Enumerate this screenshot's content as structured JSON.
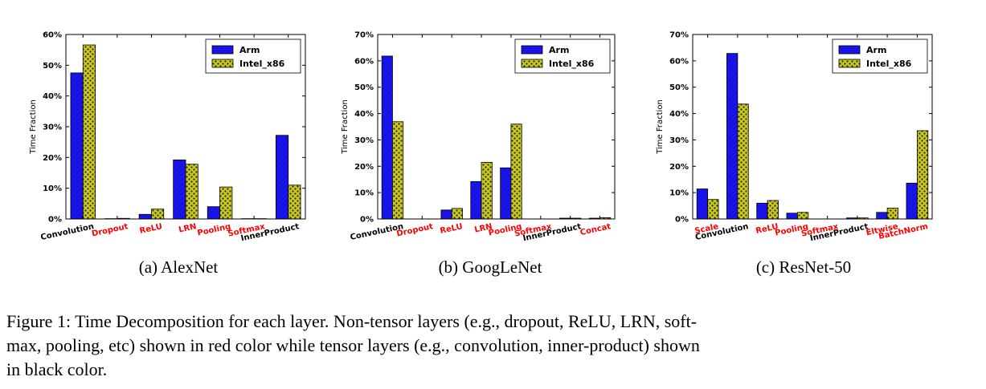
{
  "colors": {
    "arm": "#1a14f0",
    "intel": "#c8c81e",
    "tensor_label": "#000000",
    "non_tensor_label": "#ff0000"
  },
  "chart_data": [
    {
      "type": "bar",
      "caption": "(a) AlexNet",
      "ylabel": "Time Fraction",
      "ylim": [
        0,
        60
      ],
      "yticks": [
        "0%",
        "10%",
        "20%",
        "30%",
        "40%",
        "50%",
        "60%"
      ],
      "legend": "top-right",
      "categories": [
        "Convolution",
        "Dropout",
        "ReLU",
        "LRN",
        "Pooling",
        "Softmax",
        "InnerProduct"
      ],
      "category_types": [
        "tensor",
        "non-tensor",
        "non-tensor",
        "non-tensor",
        "non-tensor",
        "non-tensor",
        "tensor"
      ],
      "series": [
        {
          "name": "Arm",
          "values": [
            47.5,
            0.1,
            1.5,
            19.2,
            4.0,
            0.1,
            27.2
          ]
        },
        {
          "name": "Intel_x86",
          "values": [
            56.6,
            0.2,
            3.2,
            17.8,
            10.4,
            0.1,
            11.0
          ]
        }
      ]
    },
    {
      "type": "bar",
      "caption": "(b) GoogLeNet",
      "ylabel": "Time Fraction",
      "ylim": [
        0,
        70
      ],
      "yticks": [
        "0%",
        "10%",
        "20%",
        "30%",
        "40%",
        "50%",
        "60%",
        "70%"
      ],
      "legend": "top-right",
      "categories": [
        "Convolution",
        "Dropout",
        "ReLU",
        "LRN",
        "Pooling",
        "Softmax",
        "InnerProduct",
        "Concat"
      ],
      "category_types": [
        "tensor",
        "non-tensor",
        "non-tensor",
        "non-tensor",
        "non-tensor",
        "non-tensor",
        "tensor",
        "non-tensor"
      ],
      "series": [
        {
          "name": "Arm",
          "values": [
            61.8,
            0.0,
            3.4,
            14.2,
            19.4,
            0.0,
            0.3,
            0.3
          ]
        },
        {
          "name": "Intel_x86",
          "values": [
            36.9,
            0.0,
            4.0,
            21.5,
            36.0,
            0.0,
            0.3,
            0.5
          ]
        }
      ]
    },
    {
      "type": "bar",
      "caption": "(c) ResNet-50",
      "ylabel": "Time Fraction",
      "ylim": [
        0,
        70
      ],
      "yticks": [
        "0%",
        "10%",
        "20%",
        "30%",
        "40%",
        "50%",
        "60%",
        "70%"
      ],
      "legend": "top-right",
      "categories": [
        "Scale",
        "Convolution",
        "ReLU",
        "Pooling",
        "Softmax",
        "InnerProduct",
        "Eltwise",
        "BatchNorm"
      ],
      "category_types": [
        "non-tensor",
        "tensor",
        "non-tensor",
        "non-tensor",
        "non-tensor",
        "tensor",
        "non-tensor",
        "non-tensor"
      ],
      "series": [
        {
          "name": "Arm",
          "values": [
            11.4,
            62.8,
            6.0,
            2.2,
            0.0,
            0.4,
            2.5,
            13.6
          ]
        },
        {
          "name": "Intel_x86",
          "values": [
            7.4,
            43.6,
            7.0,
            2.5,
            0.0,
            0.4,
            4.1,
            33.5
          ]
        }
      ]
    }
  ],
  "figure_caption": {
    "lines": [
      "Figure 1: Time Decomposition for each layer. Non-tensor layers (e.g., dropout, ReLU, LRN, soft-",
      "max, pooling, etc) shown in red color while tensor layers (e.g., convolution, inner-product) shown",
      "in black color."
    ]
  }
}
